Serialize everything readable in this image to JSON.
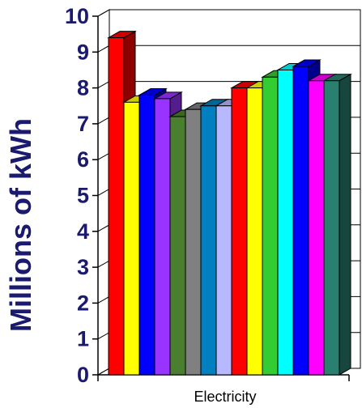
{
  "chart_data": {
    "type": "bar",
    "title": "",
    "xlabel": "",
    "ylabel": "Millions of kWh",
    "categories": [
      "Electricity"
    ],
    "ylim": [
      0,
      10
    ],
    "yticks": [
      "0",
      "1",
      "2",
      "3",
      "4",
      "5",
      "6",
      "7",
      "8",
      "9",
      "10"
    ],
    "grid": true,
    "three_d": true,
    "series": [
      {
        "color": "#ff0000",
        "values": [
          9.4
        ]
      },
      {
        "color": "#ffff00",
        "values": [
          7.6
        ]
      },
      {
        "color": "#0000ff",
        "values": [
          7.8
        ]
      },
      {
        "color": "#9933ff",
        "values": [
          7.7
        ]
      },
      {
        "color": "#4a7f2f",
        "values": [
          7.2
        ]
      },
      {
        "color": "#808080",
        "values": [
          7.4
        ]
      },
      {
        "color": "#0080c0",
        "values": [
          7.5
        ]
      },
      {
        "color": "#b8b8ff",
        "values": [
          7.5
        ]
      },
      {
        "color": "#ff0000",
        "values": [
          8.0
        ]
      },
      {
        "color": "#ffff00",
        "values": [
          8.0
        ]
      },
      {
        "color": "#33cc33",
        "values": [
          8.3
        ]
      },
      {
        "color": "#00ffff",
        "values": [
          8.5
        ]
      },
      {
        "color": "#0000ff",
        "values": [
          8.6
        ]
      },
      {
        "color": "#ff00ff",
        "values": [
          8.2
        ]
      },
      {
        "color": "#2a8070",
        "values": [
          8.2
        ]
      }
    ]
  }
}
